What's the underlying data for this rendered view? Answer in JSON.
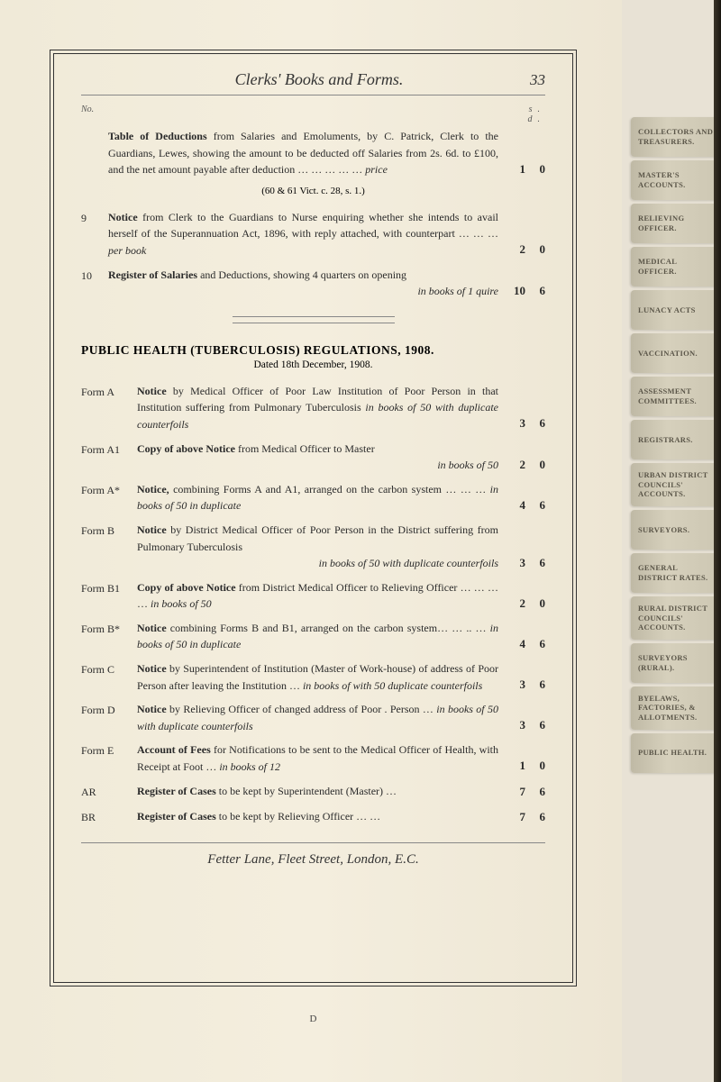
{
  "header": {
    "title": "Clerks' Books and Forms.",
    "page_number": "33",
    "col_no": "No.",
    "col_sd": "s. d."
  },
  "entries": [
    {
      "no": "",
      "lead": "Table of Deductions",
      "rest": " from Salaries and Emoluments, by C. Patrick, Clerk to the Guardians, Lewes, showing the amount to be deducted off Salaries from 2s. 6d. to £100, and the net amount payable after deduction    …    …    …    …    … ",
      "tail_ital": "price",
      "s": "1",
      "d": "0",
      "sub": "(60 & 61 Vict. c. 28, s. 1.)"
    },
    {
      "no": "9",
      "lead": "Notice",
      "rest": " from Clerk to the Guardians to Nurse enquiring whether she intends to avail herself of the Superannuation Act, 1896, with reply attached, with counterpart    …    …    …",
      "tail_ital": "per book",
      "s": "2",
      "d": "0"
    },
    {
      "no": "10",
      "lead": "Register of Salaries",
      "rest": " and Deductions, showing 4 quarters on opening",
      "rest2_ital": "in books of 1 quire",
      "s": "10",
      "d": "6"
    }
  ],
  "section": {
    "title": "PUBLIC HEALTH (TUBERCULOSIS) REGULATIONS, 1908.",
    "sub": "Dated 18th December, 1908."
  },
  "forms": [
    {
      "label": "Form A",
      "lead": "Notice",
      "rest": " by Medical Officer of Poor Law Institution of Poor Person in that Institution suffering from Pulmonary Tuberculosis        ",
      "tail_ital": "in books of 50 with duplicate counterfoils",
      "s": "3",
      "d": "6"
    },
    {
      "label": "Form A1",
      "lead": "Copy of above Notice",
      "rest": " from Medical Officer to Master",
      "rest2_ital": "in books of 50",
      "s": "2",
      "d": "0"
    },
    {
      "label": "Form A*",
      "lead": "Notice,",
      "rest": " combining Forms A and A1, arranged on the carbon system        …    …    …    ",
      "tail_ital": "in books of 50 in duplicate",
      "s": "4",
      "d": "6"
    },
    {
      "label": "Form B",
      "lead": "Notice",
      "rest": " by District Medical Officer of Poor Person in the District suffering from Pulmonary Tuberculosis",
      "rest2_ital": "in books of 50 with duplicate counterfoils",
      "s": "3",
      "d": "6"
    },
    {
      "label": "Form B1",
      "lead": "Copy of above Notice",
      "rest": " from District Medical Officer to Relieving Officer    …    …    …    … ",
      "tail_ital": "in books of 50",
      "s": "2",
      "d": "0"
    },
    {
      "label": "Form B*",
      "lead": "Notice",
      "rest": " combining Forms B and B1, arranged on the carbon system…    …    ..    …    ",
      "tail_ital": "in books of 50 in duplicate",
      "s": "4",
      "d": "6"
    },
    {
      "label": "Form C",
      "lead": "Notice",
      "rest": " by Superintendent of Institution (Master of Work-house) of address of Poor Person after leaving the Institution    …    ",
      "tail_ital": "in books of with 50 duplicate counterfoils",
      "s": "3",
      "d": "6"
    },
    {
      "label": "Form D",
      "lead": "Notice",
      "rest": " by Relieving Officer of changed address of Poor . Person        …    ",
      "tail_ital": "in books of 50 with duplicate counterfoils",
      "s": "3",
      "d": "6"
    },
    {
      "label": "Form E",
      "lead": "Account of Fees",
      "rest": " for Notifications to be sent to the Medical Officer of Health, with Receipt at Foot …      ",
      "tail_ital": "in books of 12",
      "s": "1",
      "d": "0"
    },
    {
      "label": "AR",
      "lead": "Register of Cases",
      "rest": " to be kept by Superintendent (Master)    …",
      "s": "7",
      "d": "6"
    },
    {
      "label": "BR",
      "lead": "Register of Cases",
      "rest": " to be kept by Relieving Officer    …    …",
      "s": "7",
      "d": "6"
    }
  ],
  "footer": {
    "address": "Fetter Lane, Fleet Street, London, E.C.",
    "sig": "D"
  },
  "tabs": [
    "COLLECTORS AND TREASURERS.",
    "MASTER'S ACCOUNTS.",
    "RELIEVING OFFICER.",
    "MEDICAL OFFICER.",
    "LUNACY ACTS",
    "VACCINATION.",
    "ASSESSMENT COMMITTEES.",
    "REGISTRARS.",
    "URBAN DISTRICT COUNCILS' ACCOUNTS.",
    "SURVEYORS.",
    "GENERAL DISTRICT RATES.",
    "RURAL DISTRICT COUNCILS' ACCOUNTS.",
    "SURVEYORS (RURAL).",
    "BYELAWS, FACTORIES, & ALLOTMENTS.",
    "PUBLIC HEALTH."
  ]
}
